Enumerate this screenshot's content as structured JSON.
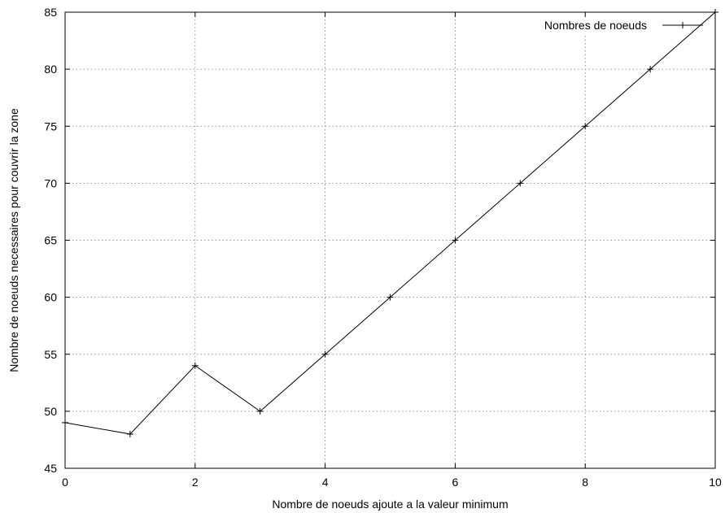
{
  "chart_data": {
    "type": "line",
    "title": "",
    "xlabel": "Nombre de noeuds ajoute a la valeur minimum",
    "ylabel": "Nombre de noeuds necessaires pour couvrir la zone",
    "xlim": [
      0,
      10
    ],
    "ylim": [
      45,
      85
    ],
    "xticks": [
      0,
      2,
      4,
      6,
      8,
      10
    ],
    "yticks": [
      45,
      50,
      55,
      60,
      65,
      70,
      75,
      80,
      85
    ],
    "grid": true,
    "legend_position": "top-right",
    "series": [
      {
        "name": "Nombres de noeuds",
        "marker": "plus",
        "color": "#000000",
        "x": [
          0,
          1,
          2,
          3,
          4,
          5,
          6,
          7,
          8,
          9,
          10
        ],
        "y": [
          49,
          48,
          54,
          50,
          55,
          60,
          65,
          70,
          75,
          80,
          85
        ]
      }
    ]
  }
}
